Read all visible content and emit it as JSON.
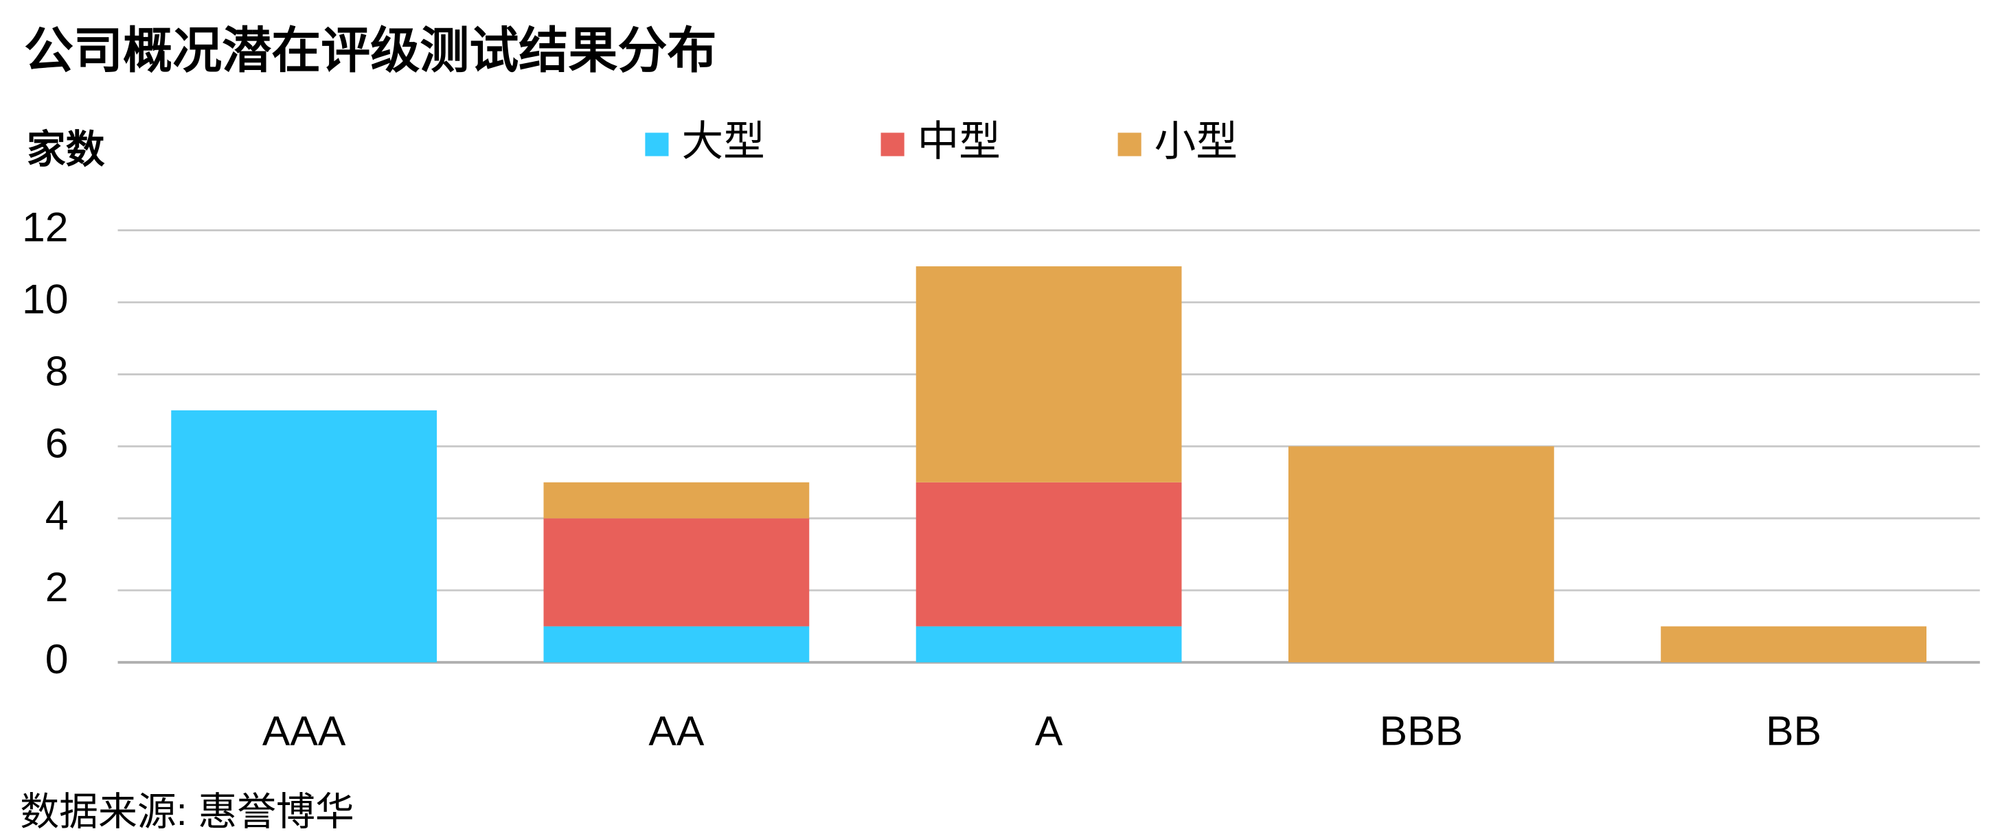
{
  "chart_data": {
    "type": "stacked_bar",
    "title": "公司概况潜在评级测试结果分布",
    "y_label": "家数",
    "source": "数据来源: 惠誉博华",
    "categories": [
      "AAA",
      "AA",
      "A",
      "BBB",
      "BB"
    ],
    "series": [
      {
        "name": "大型",
        "color": "#33ccff",
        "values": [
          7,
          1,
          1,
          0,
          0
        ]
      },
      {
        "name": "中型",
        "color": "#e8605a",
        "values": [
          0,
          3,
          4,
          0,
          0
        ]
      },
      {
        "name": "小型",
        "color": "#e3a64f",
        "values": [
          0,
          1,
          6,
          6,
          1
        ]
      }
    ],
    "ylim": [
      0,
      12
    ],
    "yticks": [
      0,
      2,
      4,
      6,
      8,
      10,
      12
    ],
    "grid": true,
    "legend": "top"
  }
}
